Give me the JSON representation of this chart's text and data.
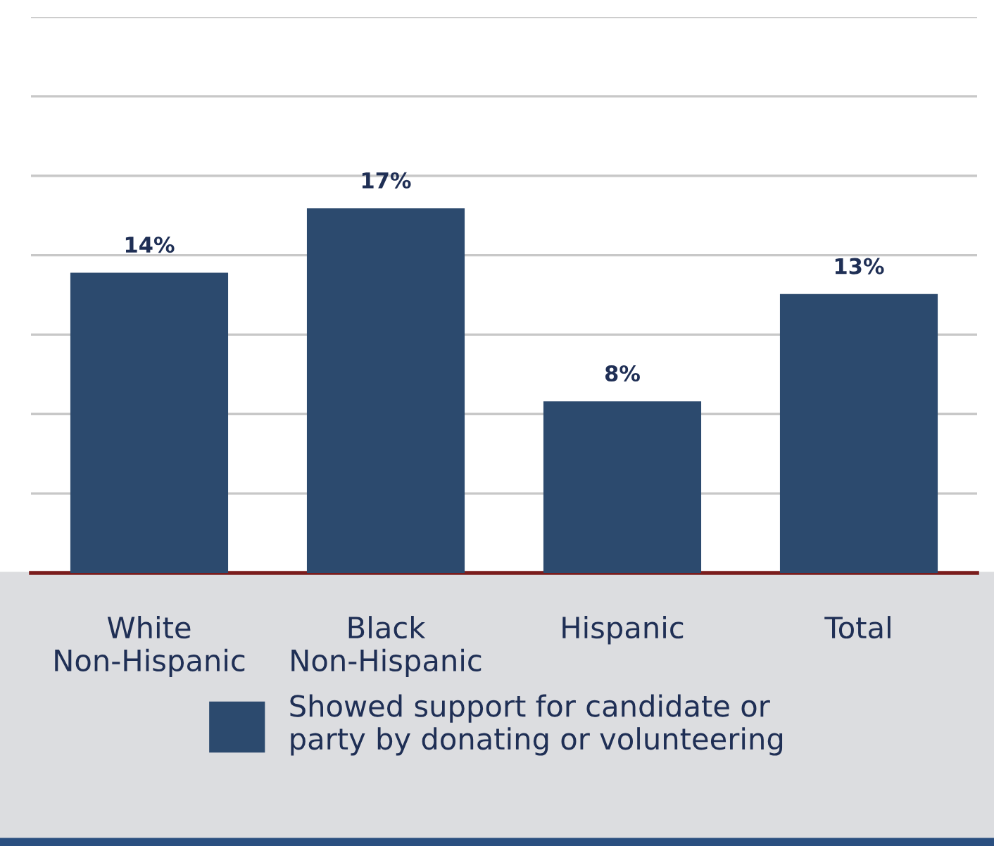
{
  "chart_data": {
    "type": "bar",
    "categories": [
      "White\nNon-Hispanic",
      "Black\nNon-Hispanic",
      "Hispanic",
      "Total"
    ],
    "series": [
      {
        "name": "Showed support for candidate or\nparty by donating or volunteering",
        "color": "#2c4a6e",
        "values": [
          14,
          17,
          8,
          13
        ],
        "value_labels": [
          "14%",
          "17%",
          "8%",
          "13%"
        ]
      }
    ],
    "tick_labels": "x",
    "grid": "y",
    "legend": "bottom"
  }
}
